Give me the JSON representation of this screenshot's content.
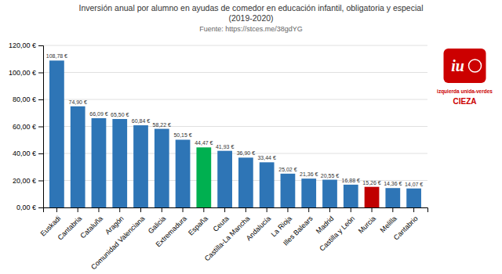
{
  "chart_data": {
    "type": "bar",
    "title": [
      "Inversión anual por alumno en ayudas de comedor en educación infantil, obligatoria y especial",
      "(2019-2020)"
    ],
    "subtitle": "Fuente: https://stces.me/38gdYG",
    "categories": [
      "Euskadi",
      "Cantabria",
      "Cataluña",
      "Aragón",
      "Comunidad Valenciana",
      "Galicia",
      "Extremadura",
      "España",
      "Ceuta",
      "Castilla-La Mancha",
      "Andalucía",
      "La Rioja",
      "Illes Balears",
      "Madrid",
      "Castilla y León",
      "Murcia",
      "Melilla",
      "Cantabrio"
    ],
    "values": [
      108.78,
      74.9,
      66.09,
      65.5,
      60.84,
      58.22,
      50.15,
      44.47,
      41.93,
      36.9,
      33.44,
      25.02,
      21.36,
      20.55,
      16.88,
      15.26,
      14.36,
      14.07
    ],
    "value_labels": [
      "108,78 €",
      "74,90 €",
      "66,09 €",
      "65,50 €",
      "60,84 €",
      "58,22 €",
      "50,15 €",
      "44,47 €",
      "41,93 €",
      "36,90 €",
      "33,44 €",
      "25,02 €",
      "21,36 €",
      "20,55 €",
      "16,88 €",
      "15,26 €",
      "14,36 €",
      "14,07 €"
    ],
    "data_labels": true,
    "colors": [
      "#2e75b6",
      "#2e75b6",
      "#2e75b6",
      "#2e75b6",
      "#2e75b6",
      "#2e75b6",
      "#2e75b6",
      "#00b050",
      "#2e75b6",
      "#2e75b6",
      "#2e75b6",
      "#2e75b6",
      "#2e75b6",
      "#2e75b6",
      "#2e75b6",
      "#c00000",
      "#2e75b6",
      "#2e75b6"
    ],
    "ylim": [
      0,
      120
    ],
    "yticks": [
      {
        "value": 0,
        "label": "0,00 €"
      },
      {
        "value": 20,
        "label": "20,00 €"
      },
      {
        "value": 40,
        "label": "40,00 €"
      },
      {
        "value": 60,
        "label": "60,00 €"
      },
      {
        "value": 80,
        "label": "80,00 €"
      },
      {
        "value": 100,
        "label": "100,00 €"
      },
      {
        "value": 120,
        "label": "120,00 €"
      }
    ],
    "grid": true,
    "annotations": [
      "iu",
      "izquierda unida-verdes",
      "CIEZA"
    ]
  }
}
